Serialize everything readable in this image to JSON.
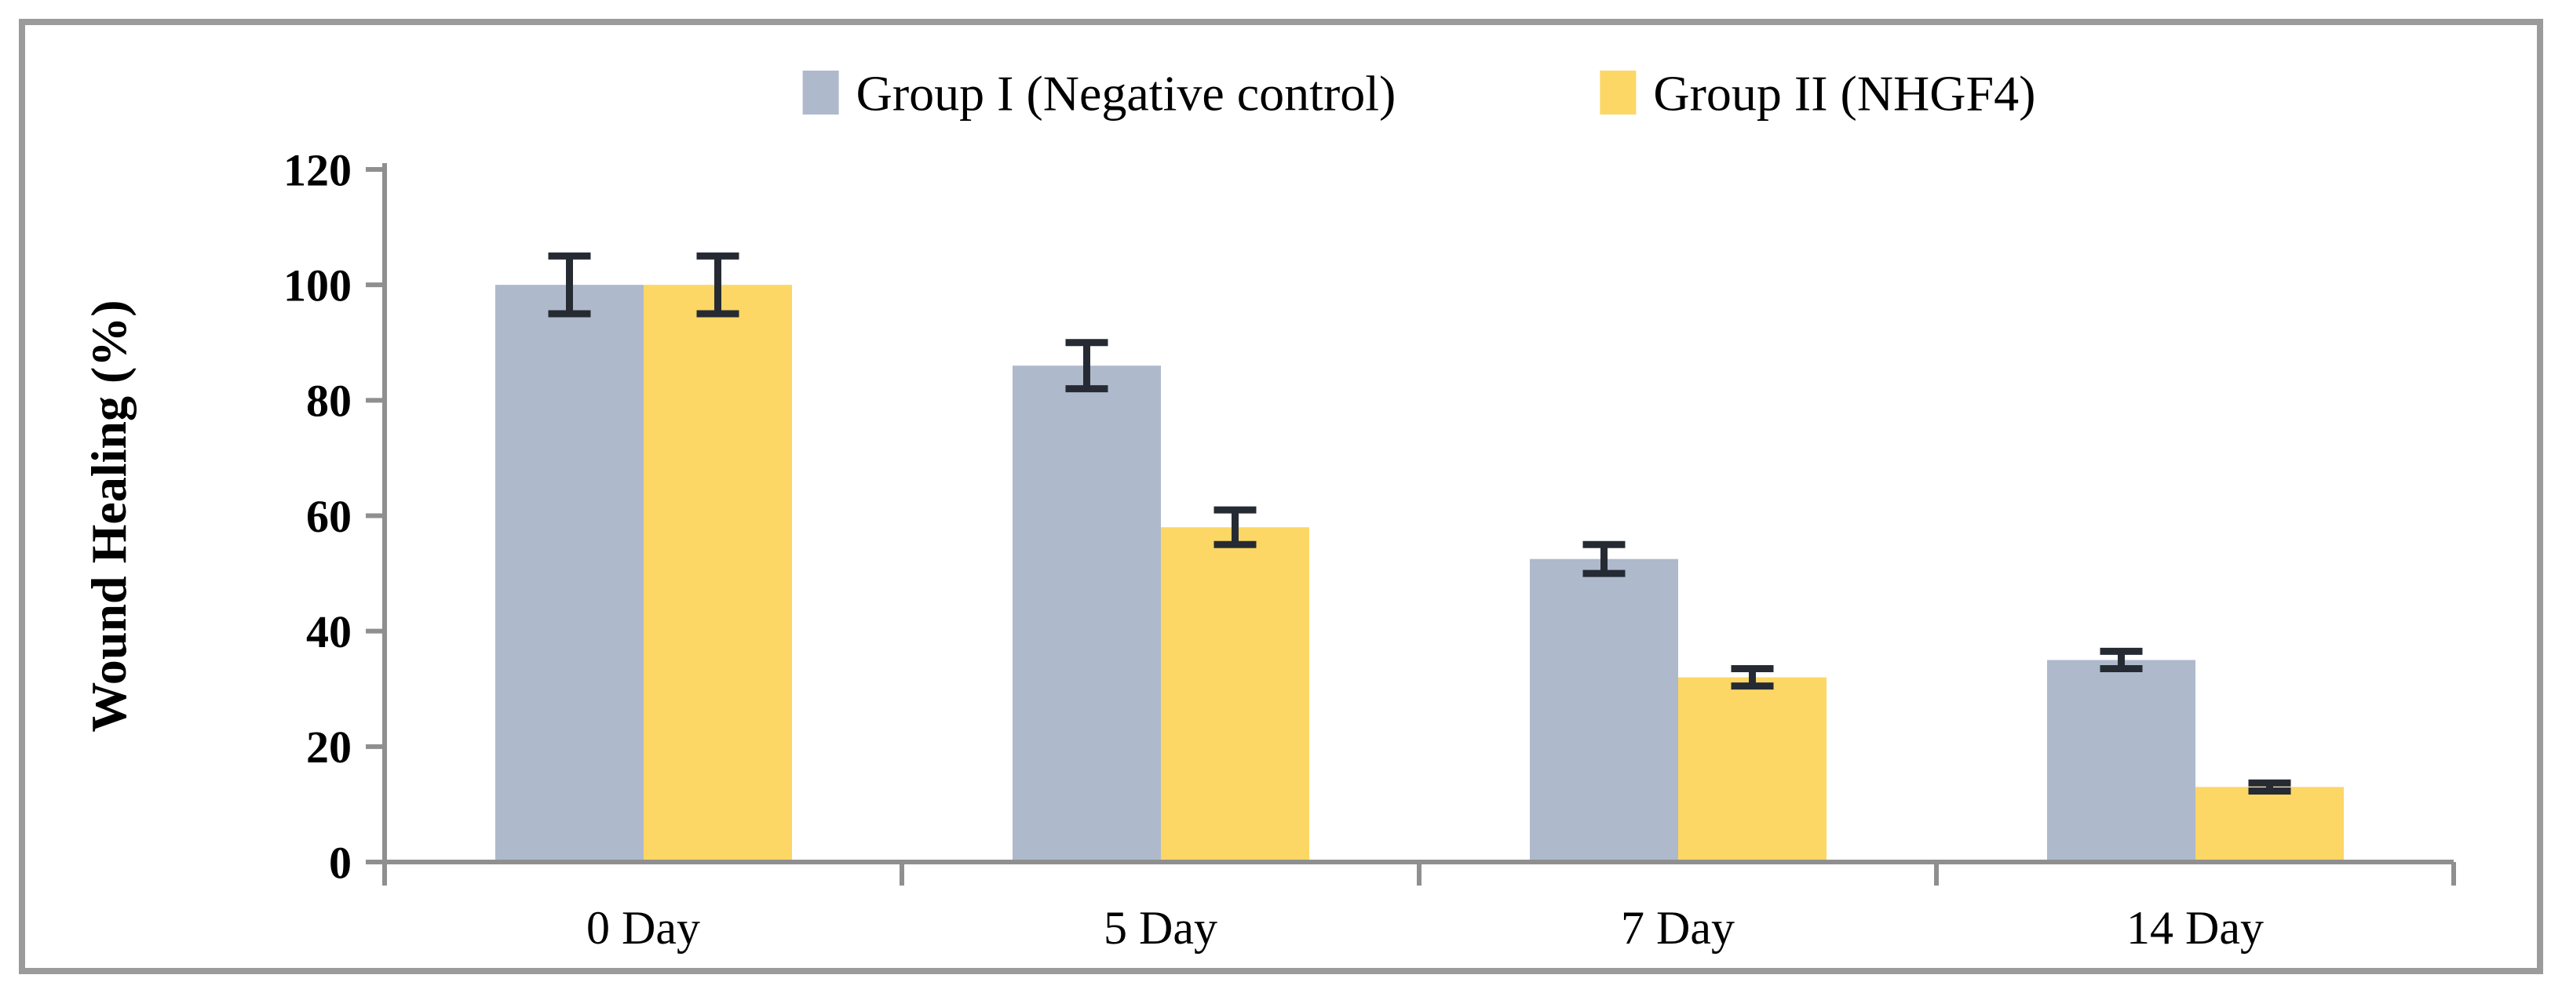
{
  "figure": {
    "description": "Grouped bar chart with error bars comparing wound healing percentage over days",
    "border_color": "#9b9b9b",
    "background_color": "#ffffff"
  },
  "chart_data": {
    "type": "bar",
    "bar_mode": "grouped",
    "title": "",
    "xlabel": "",
    "ylabel": "Wound Healing (%)",
    "categories": [
      "0 Day",
      "5 Day",
      "7 Day",
      "14 Day"
    ],
    "series": [
      {
        "name": "Group I (Negative control)",
        "color": "#aeb9cc",
        "values": [
          100,
          86,
          52.5,
          35
        ],
        "errors": [
          5,
          4,
          2.5,
          1.5
        ]
      },
      {
        "name": "Group II (NHGF4)",
        "color": "#fcd765",
        "values": [
          100,
          58,
          32,
          13
        ],
        "errors": [
          5,
          3,
          1.5,
          0.7
        ]
      }
    ],
    "ylim": [
      0,
      120
    ],
    "yticks": [
      0,
      20,
      40,
      60,
      80,
      100,
      120
    ],
    "grid": false,
    "legend_position": "top-center",
    "error_bars": true,
    "error_bar_color": "#262b33",
    "axis_color": "#8f8f8f",
    "text_color": "#000000"
  }
}
